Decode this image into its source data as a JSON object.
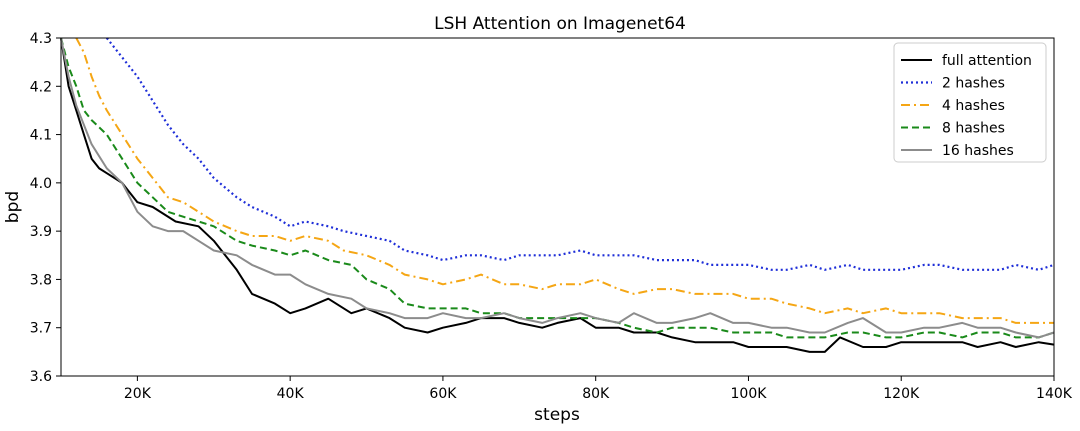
{
  "chart_data": {
    "type": "line",
    "title": "LSH Attention on Imagenet64",
    "xlabel": "steps",
    "ylabel": "bpd",
    "xlim": [
      10000,
      140000
    ],
    "ylim": [
      3.6,
      4.3
    ],
    "x_ticks": [
      {
        "value": 20000,
        "label": "20K"
      },
      {
        "value": 40000,
        "label": "40K"
      },
      {
        "value": 60000,
        "label": "60K"
      },
      {
        "value": 80000,
        "label": "80K"
      },
      {
        "value": 100000,
        "label": "100K"
      },
      {
        "value": 120000,
        "label": "120K"
      },
      {
        "value": 140000,
        "label": "140K"
      }
    ],
    "y_ticks": [
      {
        "value": 3.6,
        "label": "3.6"
      },
      {
        "value": 3.7,
        "label": "3.7"
      },
      {
        "value": 3.8,
        "label": "3.8"
      },
      {
        "value": 3.9,
        "label": "3.9"
      },
      {
        "value": 4.0,
        "label": "4.0"
      },
      {
        "value": 4.1,
        "label": "4.1"
      },
      {
        "value": 4.2,
        "label": "4.2"
      },
      {
        "value": 4.3,
        "label": "4.3"
      }
    ],
    "legend_position": "top-right",
    "grid": false,
    "series": [
      {
        "name": "full attention",
        "color": "#000000",
        "style": "solid",
        "x": [
          10000,
          11000,
          12000,
          13000,
          14000,
          15000,
          16000,
          18000,
          20000,
          22000,
          25000,
          28000,
          30000,
          33000,
          35000,
          38000,
          40000,
          42000,
          45000,
          48000,
          50000,
          53000,
          55000,
          58000,
          60000,
          63000,
          65000,
          68000,
          70000,
          73000,
          75000,
          78000,
          80000,
          83000,
          85000,
          88000,
          90000,
          93000,
          95000,
          98000,
          100000,
          103000,
          105000,
          108000,
          110000,
          112000,
          115000,
          118000,
          120000,
          123000,
          125000,
          128000,
          130000,
          133000,
          135000,
          138000,
          140000
        ],
        "y": [
          4.3,
          4.2,
          4.15,
          4.1,
          4.05,
          4.03,
          4.02,
          4.0,
          3.96,
          3.95,
          3.92,
          3.91,
          3.88,
          3.82,
          3.77,
          3.75,
          3.73,
          3.74,
          3.76,
          3.73,
          3.74,
          3.72,
          3.7,
          3.69,
          3.7,
          3.71,
          3.72,
          3.72,
          3.71,
          3.7,
          3.71,
          3.72,
          3.7,
          3.7,
          3.69,
          3.69,
          3.68,
          3.67,
          3.67,
          3.67,
          3.66,
          3.66,
          3.66,
          3.65,
          3.65,
          3.68,
          3.66,
          3.66,
          3.67,
          3.67,
          3.67,
          3.67,
          3.66,
          3.67,
          3.66,
          3.67,
          3.665
        ]
      },
      {
        "name": "2 hashes",
        "color": "#1f2fd8",
        "style": "dotted",
        "x": [
          16000,
          17000,
          18000,
          20000,
          22000,
          24000,
          26000,
          28000,
          30000,
          33000,
          35000,
          38000,
          40000,
          42000,
          45000,
          47000,
          50000,
          53000,
          55000,
          58000,
          60000,
          63000,
          65000,
          68000,
          70000,
          73000,
          75000,
          78000,
          80000,
          83000,
          85000,
          88000,
          90000,
          93000,
          95000,
          98000,
          100000,
          103000,
          105000,
          108000,
          110000,
          113000,
          115000,
          118000,
          120000,
          123000,
          125000,
          128000,
          130000,
          133000,
          135000,
          138000,
          140000
        ],
        "y": [
          4.3,
          4.28,
          4.26,
          4.22,
          4.17,
          4.12,
          4.08,
          4.05,
          4.01,
          3.97,
          3.95,
          3.93,
          3.91,
          3.92,
          3.91,
          3.9,
          3.89,
          3.88,
          3.86,
          3.85,
          3.84,
          3.85,
          3.85,
          3.84,
          3.85,
          3.85,
          3.85,
          3.86,
          3.85,
          3.85,
          3.85,
          3.84,
          3.84,
          3.84,
          3.83,
          3.83,
          3.83,
          3.82,
          3.82,
          3.83,
          3.82,
          3.83,
          3.82,
          3.82,
          3.82,
          3.83,
          3.83,
          3.82,
          3.82,
          3.82,
          3.83,
          3.82,
          3.83
        ]
      },
      {
        "name": "4 hashes",
        "color": "#f5a614",
        "style": "dashdot",
        "x": [
          12000,
          13000,
          14000,
          15000,
          16000,
          18000,
          20000,
          22000,
          24000,
          26000,
          28000,
          30000,
          33000,
          35000,
          38000,
          40000,
          42000,
          45000,
          47000,
          50000,
          53000,
          55000,
          58000,
          60000,
          63000,
          65000,
          68000,
          70000,
          73000,
          75000,
          78000,
          80000,
          83000,
          85000,
          88000,
          90000,
          93000,
          95000,
          98000,
          100000,
          103000,
          105000,
          108000,
          110000,
          113000,
          115000,
          118000,
          120000,
          123000,
          125000,
          128000,
          130000,
          133000,
          135000,
          138000,
          140000
        ],
        "y": [
          4.3,
          4.27,
          4.22,
          4.18,
          4.15,
          4.1,
          4.05,
          4.01,
          3.97,
          3.96,
          3.94,
          3.92,
          3.9,
          3.89,
          3.89,
          3.88,
          3.89,
          3.88,
          3.86,
          3.85,
          3.83,
          3.81,
          3.8,
          3.79,
          3.8,
          3.81,
          3.79,
          3.79,
          3.78,
          3.79,
          3.79,
          3.8,
          3.78,
          3.77,
          3.78,
          3.78,
          3.77,
          3.77,
          3.77,
          3.76,
          3.76,
          3.75,
          3.74,
          3.73,
          3.74,
          3.73,
          3.74,
          3.73,
          3.73,
          3.73,
          3.72,
          3.72,
          3.72,
          3.71,
          3.71,
          3.71
        ]
      },
      {
        "name": "8 hashes",
        "color": "#1a8a1a",
        "style": "dashed",
        "x": [
          10000,
          11000,
          12000,
          13000,
          14000,
          16000,
          18000,
          20000,
          22000,
          24000,
          26000,
          28000,
          30000,
          33000,
          35000,
          38000,
          40000,
          42000,
          45000,
          48000,
          50000,
          53000,
          55000,
          58000,
          60000,
          63000,
          65000,
          68000,
          70000,
          73000,
          75000,
          78000,
          80000,
          83000,
          85000,
          88000,
          90000,
          93000,
          95000,
          98000,
          100000,
          103000,
          105000,
          108000,
          110000,
          113000,
          115000,
          118000,
          120000,
          123000,
          125000,
          128000,
          130000,
          133000,
          135000,
          138000,
          140000
        ],
        "y": [
          4.3,
          4.24,
          4.2,
          4.15,
          4.13,
          4.1,
          4.05,
          4.0,
          3.97,
          3.94,
          3.93,
          3.92,
          3.91,
          3.88,
          3.87,
          3.86,
          3.85,
          3.86,
          3.84,
          3.83,
          3.8,
          3.78,
          3.75,
          3.74,
          3.74,
          3.74,
          3.73,
          3.73,
          3.72,
          3.72,
          3.72,
          3.72,
          3.72,
          3.71,
          3.7,
          3.69,
          3.7,
          3.7,
          3.7,
          3.69,
          3.69,
          3.69,
          3.68,
          3.68,
          3.68,
          3.69,
          3.69,
          3.68,
          3.68,
          3.69,
          3.69,
          3.68,
          3.69,
          3.69,
          3.68,
          3.68,
          3.69
        ]
      },
      {
        "name": "16 hashes",
        "color": "#8c8c8c",
        "style": "solid",
        "x": [
          10000,
          11000,
          12000,
          13000,
          14000,
          16000,
          18000,
          20000,
          22000,
          24000,
          26000,
          28000,
          30000,
          33000,
          35000,
          38000,
          40000,
          42000,
          45000,
          48000,
          50000,
          53000,
          55000,
          58000,
          60000,
          63000,
          65000,
          68000,
          70000,
          73000,
          75000,
          78000,
          80000,
          83000,
          85000,
          88000,
          90000,
          93000,
          95000,
          98000,
          100000,
          103000,
          105000,
          108000,
          110000,
          113000,
          115000,
          118000,
          120000,
          123000,
          125000,
          128000,
          130000,
          133000,
          135000,
          138000,
          140000
        ],
        "y": [
          4.3,
          4.22,
          4.16,
          4.12,
          4.08,
          4.03,
          4.0,
          3.94,
          3.91,
          3.9,
          3.9,
          3.88,
          3.86,
          3.85,
          3.83,
          3.81,
          3.81,
          3.79,
          3.77,
          3.76,
          3.74,
          3.73,
          3.72,
          3.72,
          3.73,
          3.72,
          3.72,
          3.73,
          3.72,
          3.71,
          3.72,
          3.73,
          3.72,
          3.71,
          3.73,
          3.71,
          3.71,
          3.72,
          3.73,
          3.71,
          3.71,
          3.7,
          3.7,
          3.69,
          3.69,
          3.71,
          3.72,
          3.69,
          3.69,
          3.7,
          3.7,
          3.71,
          3.7,
          3.7,
          3.69,
          3.68,
          3.69
        ]
      }
    ]
  }
}
